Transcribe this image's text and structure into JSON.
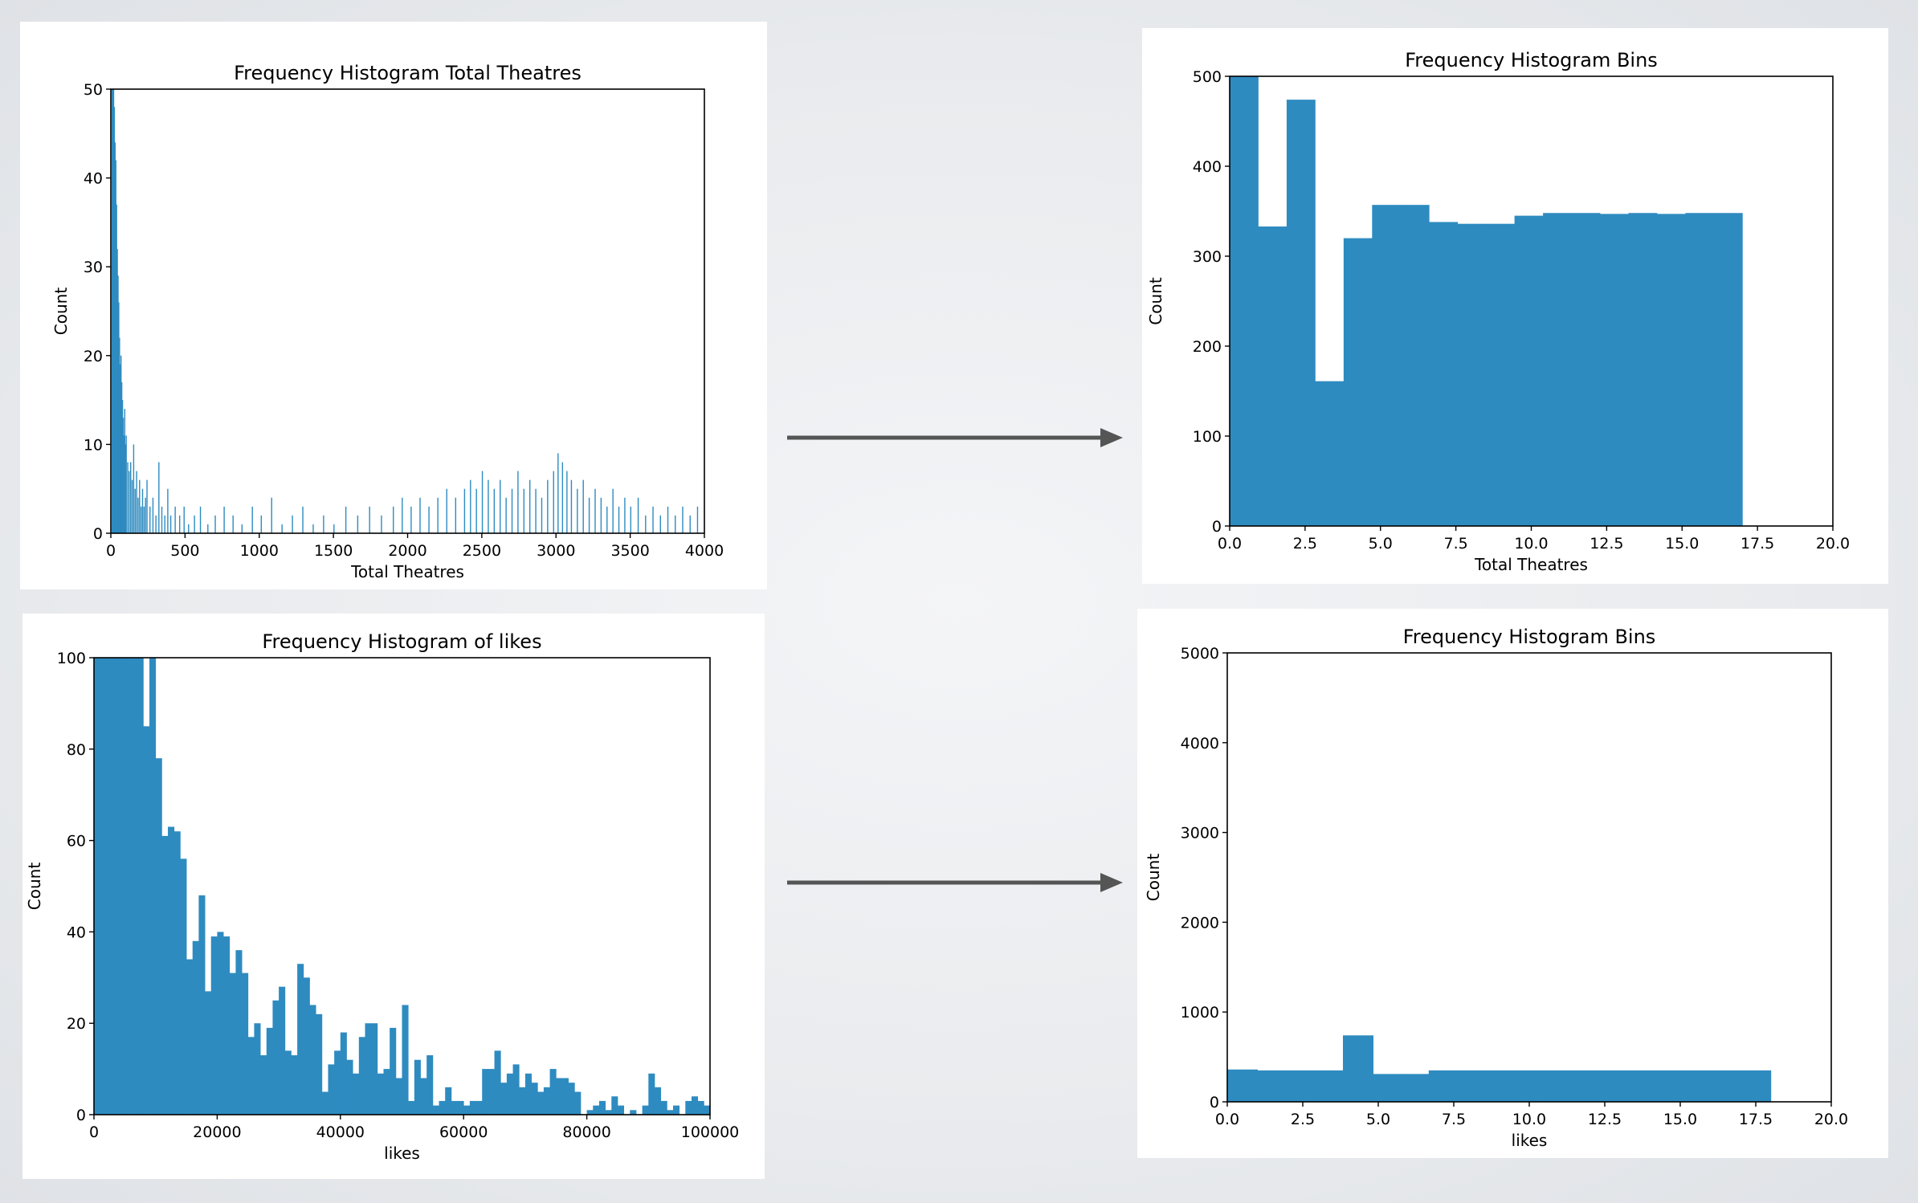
{
  "colors": {
    "bar": "#2e8bc0",
    "axis": "#000000",
    "arrow": "#555555"
  },
  "chart_data": [
    {
      "type": "bar",
      "title": "Frequency Histogram Total Theatres",
      "xlabel": "Total Theatres",
      "ylabel": "Count",
      "xlim": [
        0,
        4000
      ],
      "ylim": [
        0,
        50
      ],
      "xticks": [
        "0",
        "500",
        "1000",
        "1500",
        "2000",
        "2500",
        "3000",
        "3500",
        "4000"
      ],
      "yticks": [
        "0",
        "10",
        "20",
        "30",
        "40",
        "50"
      ],
      "grid": false,
      "legend": "none",
      "bin_width": 1,
      "bins": [
        [
          5,
          50
        ],
        [
          10,
          50
        ],
        [
          15,
          50
        ],
        [
          20,
          48
        ],
        [
          25,
          44
        ],
        [
          30,
          42
        ],
        [
          35,
          37
        ],
        [
          40,
          32
        ],
        [
          45,
          29
        ],
        [
          50,
          26
        ],
        [
          55,
          22
        ],
        [
          60,
          19
        ],
        [
          65,
          20
        ],
        [
          70,
          17
        ],
        [
          75,
          15
        ],
        [
          80,
          13
        ],
        [
          85,
          11
        ],
        [
          90,
          14
        ],
        [
          95,
          10
        ],
        [
          100,
          11
        ],
        [
          110,
          8
        ],
        [
          120,
          7
        ],
        [
          130,
          8
        ],
        [
          140,
          6
        ],
        [
          150,
          10
        ],
        [
          160,
          5
        ],
        [
          170,
          7
        ],
        [
          180,
          4
        ],
        [
          190,
          6
        ],
        [
          200,
          3
        ],
        [
          210,
          5
        ],
        [
          220,
          3
        ],
        [
          230,
          4
        ],
        [
          240,
          6
        ],
        [
          260,
          3
        ],
        [
          280,
          4
        ],
        [
          300,
          2
        ],
        [
          320,
          8
        ],
        [
          340,
          3
        ],
        [
          360,
          2
        ],
        [
          380,
          5
        ],
        [
          400,
          2
        ],
        [
          430,
          3
        ],
        [
          460,
          2
        ],
        [
          490,
          3
        ],
        [
          520,
          1
        ],
        [
          560,
          2
        ],
        [
          600,
          3
        ],
        [
          650,
          1
        ],
        [
          700,
          2
        ],
        [
          760,
          3
        ],
        [
          820,
          2
        ],
        [
          880,
          1
        ],
        [
          950,
          3
        ],
        [
          1010,
          2
        ],
        [
          1080,
          4
        ],
        [
          1150,
          1
        ],
        [
          1220,
          2
        ],
        [
          1290,
          3
        ],
        [
          1360,
          1
        ],
        [
          1430,
          2
        ],
        [
          1500,
          1
        ],
        [
          1580,
          3
        ],
        [
          1660,
          2
        ],
        [
          1740,
          3
        ],
        [
          1820,
          2
        ],
        [
          1900,
          3
        ],
        [
          1960,
          4
        ],
        [
          2020,
          3
        ],
        [
          2080,
          4
        ],
        [
          2140,
          3
        ],
        [
          2200,
          4
        ],
        [
          2260,
          5
        ],
        [
          2320,
          4
        ],
        [
          2380,
          5
        ],
        [
          2420,
          6
        ],
        [
          2460,
          5
        ],
        [
          2500,
          7
        ],
        [
          2540,
          6
        ],
        [
          2580,
          5
        ],
        [
          2620,
          6
        ],
        [
          2660,
          4
        ],
        [
          2700,
          5
        ],
        [
          2740,
          7
        ],
        [
          2780,
          5
        ],
        [
          2820,
          6
        ],
        [
          2860,
          5
        ],
        [
          2900,
          4
        ],
        [
          2940,
          6
        ],
        [
          2980,
          7
        ],
        [
          3010,
          9
        ],
        [
          3040,
          8
        ],
        [
          3070,
          7
        ],
        [
          3100,
          6
        ],
        [
          3140,
          5
        ],
        [
          3180,
          6
        ],
        [
          3220,
          4
        ],
        [
          3260,
          5
        ],
        [
          3300,
          4
        ],
        [
          3340,
          3
        ],
        [
          3380,
          5
        ],
        [
          3420,
          3
        ],
        [
          3460,
          4
        ],
        [
          3500,
          3
        ],
        [
          3550,
          4
        ],
        [
          3600,
          2
        ],
        [
          3650,
          3
        ],
        [
          3700,
          2
        ],
        [
          3750,
          3
        ],
        [
          3800,
          2
        ],
        [
          3850,
          3
        ],
        [
          3900,
          2
        ],
        [
          3950,
          3
        ]
      ]
    },
    {
      "type": "bar",
      "title": "Frequency Histogram Bins",
      "xlabel": "Total Theatres",
      "ylabel": "Count",
      "xlim": [
        0,
        20
      ],
      "ylim": [
        0,
        500
      ],
      "xticks": [
        "0.0",
        "2.5",
        "5.0",
        "7.5",
        "10.0",
        "12.5",
        "15.0",
        "17.5",
        "20.0"
      ],
      "yticks": [
        "0",
        "100",
        "200",
        "300",
        "400",
        "500"
      ],
      "grid": false,
      "legend": "none",
      "edges": [
        0,
        0.944,
        1.889,
        2.833,
        3.778,
        4.722,
        5.667,
        6.611,
        7.556,
        8.5,
        9.444,
        10.389,
        11.333,
        12.278,
        13.222,
        14.167,
        15.111,
        16.056,
        17.0
      ],
      "values": [
        500,
        333,
        474,
        161,
        320,
        357,
        357,
        338,
        336,
        336,
        345,
        348,
        348,
        347,
        348,
        347,
        348,
        348
      ]
    },
    {
      "type": "bar",
      "title": "Frequency Histogram of likes",
      "xlabel": "likes",
      "ylabel": "Count",
      "xlim": [
        0,
        100000
      ],
      "ylim": [
        0,
        100
      ],
      "xticks": [
        "0",
        "20000",
        "40000",
        "60000",
        "80000",
        "100000"
      ],
      "yticks": [
        "0",
        "20",
        "40",
        "60",
        "80",
        "100"
      ],
      "grid": false,
      "legend": "none",
      "bin_width": 1000,
      "values": [
        100,
        100,
        100,
        100,
        100,
        100,
        100,
        100,
        85,
        100,
        78,
        61,
        63,
        62,
        56,
        34,
        38,
        48,
        27,
        39,
        40,
        39,
        31,
        36,
        31,
        17,
        20,
        13,
        19,
        25,
        28,
        14,
        13,
        33,
        30,
        24,
        22,
        5,
        11,
        14,
        18,
        12,
        9,
        17,
        20,
        20,
        9,
        10,
        19,
        8,
        24,
        3,
        12,
        8,
        13,
        2,
        3,
        6,
        3,
        3,
        2,
        3,
        3,
        10,
        10,
        14,
        7,
        9,
        11,
        6,
        9,
        7,
        5,
        6,
        10,
        8,
        8,
        7,
        5,
        0,
        1,
        2,
        3,
        1,
        4,
        2,
        0,
        1,
        0,
        2,
        9,
        6,
        3,
        1,
        2,
        0,
        3,
        4,
        3,
        2
      ]
    },
    {
      "type": "bar",
      "title": "Frequency Histogram Bins",
      "xlabel": "likes",
      "ylabel": "Count",
      "xlim": [
        0,
        20
      ],
      "ylim": [
        0,
        5000
      ],
      "xticks": [
        "0.0",
        "2.5",
        "5.0",
        "7.5",
        "10.0",
        "12.5",
        "15.0",
        "17.5",
        "20.0"
      ],
      "yticks": [
        "0",
        "1000",
        "2000",
        "3000",
        "4000",
        "5000"
      ],
      "grid": false,
      "legend": "none",
      "edges": [
        0,
        1,
        2,
        3,
        3.83,
        4.83,
        5.72,
        6.67,
        7.61,
        8.56,
        9.5,
        10.44,
        11.39,
        12.33,
        13.28,
        14.22,
        15.17,
        16.11,
        17.06,
        18.0
      ],
      "values": [
        360,
        350,
        350,
        350,
        740,
        310,
        310,
        350,
        350,
        350,
        350,
        350,
        350,
        350,
        350,
        350,
        350,
        350,
        350
      ]
    }
  ]
}
